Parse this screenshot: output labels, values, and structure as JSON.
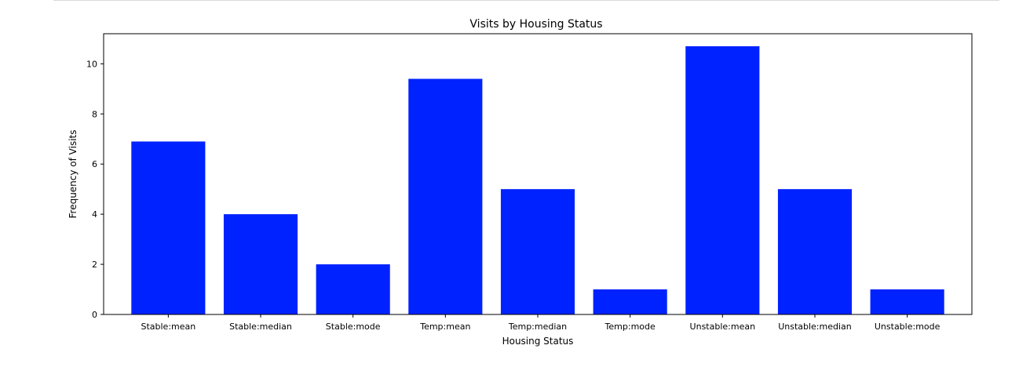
{
  "chart_data": {
    "type": "bar",
    "title": "Visits by Housing Status",
    "xlabel": "Housing Status",
    "ylabel": "Frequency of Visits",
    "categories": [
      "Stable:mean",
      "Stable:median",
      "Stable:mode",
      "Temp:mean",
      "Temp:median",
      "Temp:mode",
      "Unstable:mean",
      "Unstable:median",
      "Unstable:mode"
    ],
    "values": [
      6.9,
      4.0,
      2.0,
      9.4,
      5.0,
      1.0,
      10.7,
      5.0,
      1.0
    ],
    "ylim": [
      0,
      11.2
    ],
    "yticks": [
      0,
      2,
      4,
      6,
      8,
      10
    ],
    "bar_color": "#0022ff",
    "grid": false,
    "legend": "none"
  }
}
